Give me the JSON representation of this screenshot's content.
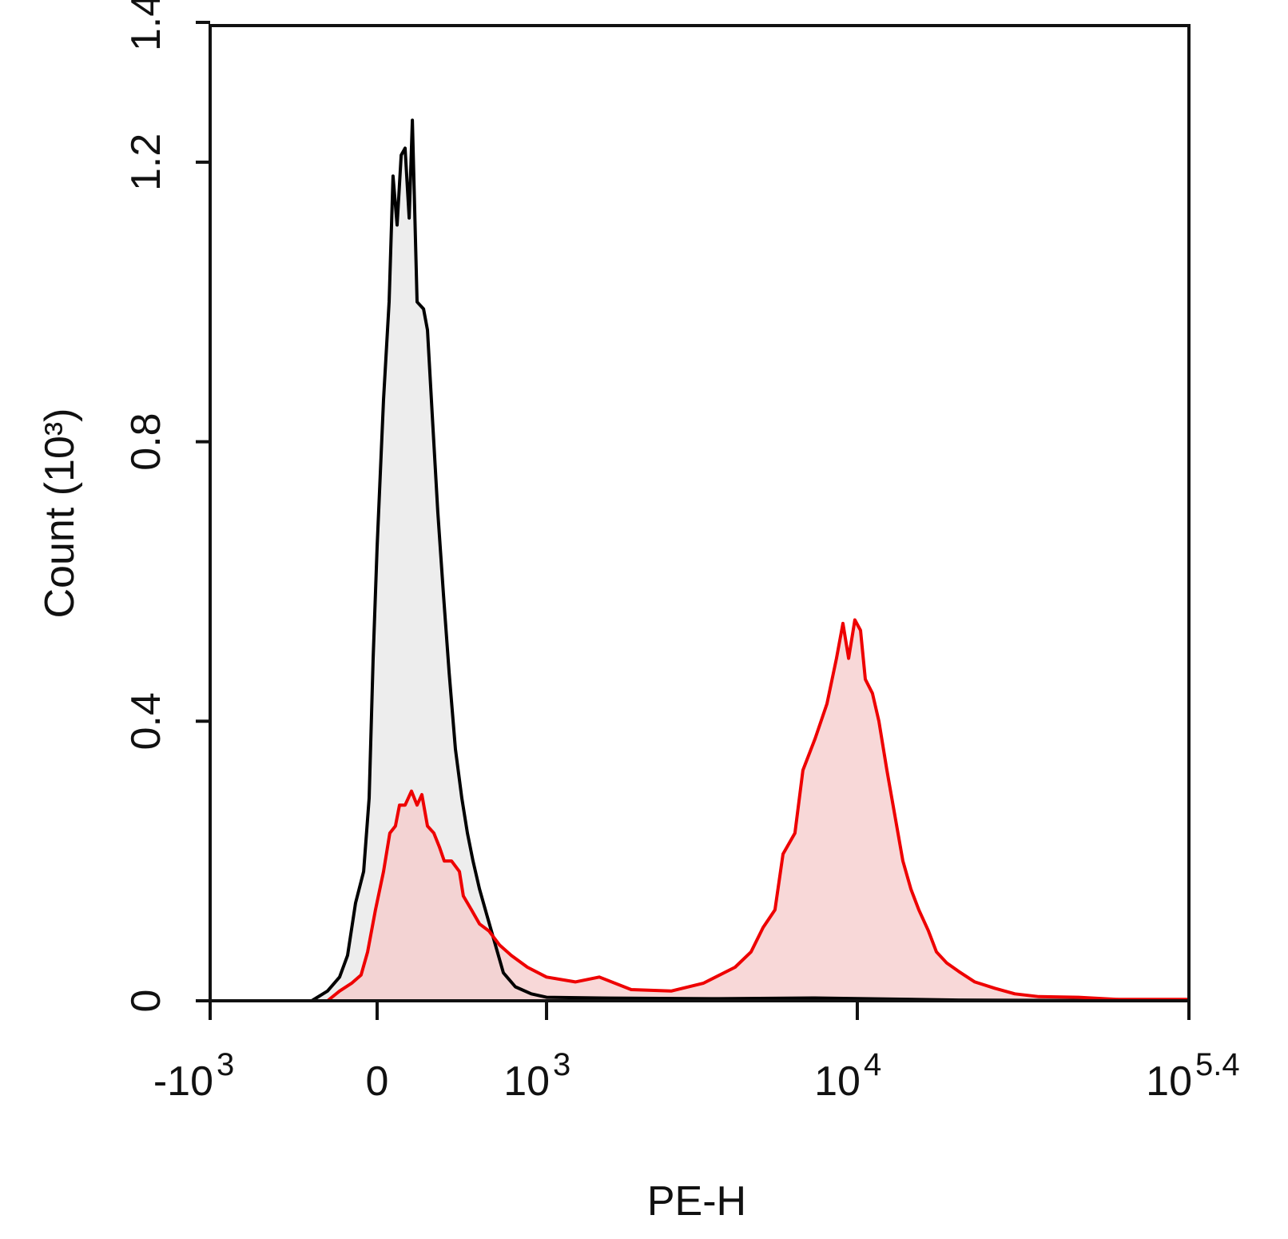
{
  "chart_data": {
    "type": "histogram-overlay",
    "x_label": "PE-H",
    "y_label": "Count (10³)",
    "xscale": "biexponential",
    "xlim": [
      -1000,
      251189
    ],
    "ylim": [
      0,
      1.4
    ],
    "xticks": [
      {
        "value": -1000,
        "label": "-10",
        "exponent": "3"
      },
      0,
      {
        "value": 1000,
        "label": "10",
        "exponent": "3"
      },
      {
        "value": 10000,
        "label": "10",
        "exponent": "4"
      },
      {
        "value": 251189,
        "label": "10",
        "exponent": "5.4"
      }
    ],
    "yticks": [
      0,
      0.4,
      0.8,
      1.2,
      1.4
    ],
    "series": [
      {
        "color": "#000000",
        "fill": "#e6e6e6",
        "x": [
          -392,
          -297,
          -225,
          -177,
          -129,
          -81,
          -48,
          -24,
          0,
          38,
          71,
          94,
          118,
          142,
          165,
          189,
          208,
          236,
          274,
          297,
          325,
          358,
          392,
          425,
          462,
          500,
          533,
          566,
          604,
          651,
          698,
          745,
          816,
          910,
          1000,
          1479,
          3589,
          7311,
          26800,
          251189
        ],
        "values": [
          0,
          0.014,
          0.034,
          0.065,
          0.14,
          0.185,
          0.29,
          0.49,
          0.65,
          0.86,
          1.0,
          1.18,
          1.11,
          1.21,
          1.22,
          1.12,
          1.26,
          1.0,
          0.99,
          0.96,
          0.84,
          0.7,
          0.58,
          0.47,
          0.36,
          0.29,
          0.24,
          0.2,
          0.16,
          0.12,
          0.08,
          0.04,
          0.02,
          0.01,
          0.005,
          0.004,
          0.003,
          0.004,
          0.001,
          0
        ]
      },
      {
        "color": "#ee0000",
        "fill": "#f5c8c8",
        "x": [
          -297,
          -225,
          -153,
          -96,
          -57,
          -10,
          38,
          75,
          108,
          132,
          165,
          203,
          236,
          264,
          297,
          335,
          368,
          396,
          439,
          486,
          509,
          557,
          604,
          660,
          722,
          792,
          887,
          1000,
          1237,
          1479,
          1873,
          2518,
          3192,
          4044,
          4550,
          4977,
          5433,
          5768,
          6299,
          6683,
          7311,
          7985,
          8570,
          8990,
          9376,
          9818,
          10316,
          10807,
          11588,
          12333,
          13334,
          14408,
          15570,
          16827,
          18187,
          19966,
          21579,
          23871,
          26800,
          31333,
          38019,
          46238,
          58345,
          86000,
          126765,
          251189
        ],
        "values": [
          0,
          0.014,
          0.025,
          0.037,
          0.07,
          0.13,
          0.185,
          0.24,
          0.25,
          0.28,
          0.28,
          0.3,
          0.28,
          0.295,
          0.25,
          0.24,
          0.22,
          0.2,
          0.2,
          0.185,
          0.15,
          0.13,
          0.11,
          0.1,
          0.08,
          0.065,
          0.048,
          0.034,
          0.027,
          0.034,
          0.016,
          0.014,
          0.025,
          0.048,
          0.07,
          0.105,
          0.13,
          0.21,
          0.24,
          0.33,
          0.375,
          0.425,
          0.49,
          0.54,
          0.49,
          0.545,
          0.53,
          0.46,
          0.44,
          0.4,
          0.33,
          0.265,
          0.2,
          0.16,
          0.13,
          0.1,
          0.07,
          0.054,
          0.042,
          0.027,
          0.018,
          0.01,
          0.006,
          0.005,
          0.002,
          0.002
        ]
      }
    ]
  }
}
